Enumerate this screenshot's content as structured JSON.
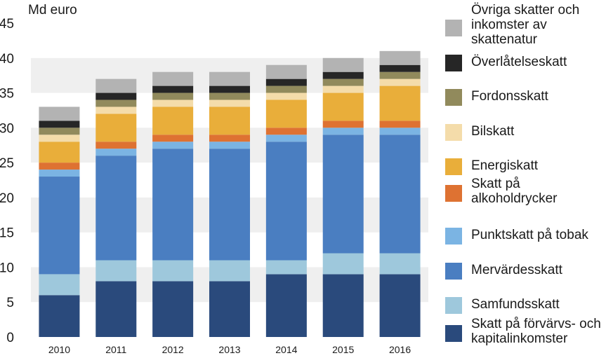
{
  "chart_data": {
    "type": "bar",
    "stacked": true,
    "title": "",
    "ylabel": "Md euro",
    "xlabel": "",
    "ylim": [
      0,
      45
    ],
    "yticks": [
      0,
      5,
      10,
      15,
      20,
      25,
      30,
      35,
      40,
      45
    ],
    "grid": false,
    "legend_position": "right",
    "categories": [
      "2010",
      "2011",
      "2012",
      "2013",
      "2014",
      "2015",
      "2016"
    ],
    "series": [
      {
        "name": "Skatt på förvärvs- och kapitalinkomster",
        "color": "#2a4a7c",
        "values": [
          6,
          8,
          8,
          8,
          9,
          9,
          9
        ]
      },
      {
        "name": "Samfundsskatt",
        "color": "#9ec8dc",
        "values": [
          3,
          3,
          3,
          3,
          2,
          3,
          3
        ]
      },
      {
        "name": "Mervärdesskatt",
        "color": "#4a7ec1",
        "values": [
          14,
          15,
          16,
          16,
          17,
          17,
          17
        ]
      },
      {
        "name": "Punktskatt på tobak",
        "color": "#7bb4e3",
        "values": [
          1,
          1,
          1,
          1,
          1,
          1,
          1
        ]
      },
      {
        "name": "Skatt på alkoholdrycker",
        "color": "#de7232",
        "values": [
          1,
          1,
          1,
          1,
          1,
          1,
          1
        ]
      },
      {
        "name": "Energiskatt",
        "color": "#e9ae3a",
        "values": [
          3,
          4,
          4,
          4,
          4,
          4,
          5
        ]
      },
      {
        "name": "Bilskatt",
        "color": "#f4dcaa",
        "values": [
          1,
          1,
          1,
          1,
          1,
          1,
          1
        ]
      },
      {
        "name": "Fordonsskatt",
        "color": "#918a5c",
        "values": [
          1,
          1,
          1,
          1,
          1,
          1,
          1
        ]
      },
      {
        "name": "Överlåtelseskatt",
        "color": "#262626",
        "values": [
          1,
          1,
          1,
          1,
          1,
          1,
          1
        ]
      },
      {
        "name": "Övriga skatter och inkomster av skattenatur",
        "color": "#b3b3b3",
        "values": [
          2,
          2,
          2,
          2,
          2,
          2,
          2
        ]
      }
    ]
  }
}
